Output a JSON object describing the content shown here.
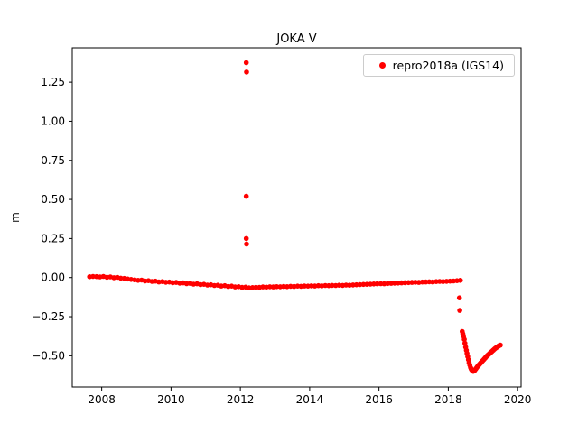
{
  "chart_data": {
    "type": "scatter",
    "title": "JOKA V",
    "xlabel": "",
    "ylabel": "m",
    "legend_label": "repro2018a (IGS14)",
    "legend_position": "upper right",
    "grid": false,
    "xlim": [
      2007.15,
      2020.1
    ],
    "ylim": [
      -0.7,
      1.47
    ],
    "xticks": [
      2008,
      2010,
      2012,
      2014,
      2016,
      2018,
      2020
    ],
    "xtick_labels": [
      "2008",
      "2010",
      "2012",
      "2014",
      "2016",
      "2018",
      "2020"
    ],
    "yticks": [
      -0.5,
      -0.25,
      0.0,
      0.25,
      0.5,
      0.75,
      1.0,
      1.25
    ],
    "ytick_labels": [
      "−0.50",
      "−0.25",
      "0.00",
      "0.25",
      "0.50",
      "0.75",
      "1.00",
      "1.25"
    ],
    "series": [
      {
        "name": "repro2018a (IGS14)",
        "color": "#ff0000",
        "marker_size": 2.8,
        "segments": [
          {
            "x_start": 2007.65,
            "x_step": 0.1,
            "y": [
              0.005,
              0.007,
              0.006,
              0.004,
              0.007,
              0.002,
              0.004,
              -0.001,
              0.001,
              -0.004,
              -0.006,
              -0.009,
              -0.012,
              -0.015,
              -0.018,
              -0.016,
              -0.022,
              -0.02,
              -0.025,
              -0.023,
              -0.028,
              -0.026,
              -0.03,
              -0.029,
              -0.033,
              -0.031,
              -0.036,
              -0.034,
              -0.039,
              -0.037,
              -0.042,
              -0.04,
              -0.045,
              -0.043,
              -0.048,
              -0.046,
              -0.051,
              -0.049,
              -0.054,
              -0.052,
              -0.057,
              -0.055,
              -0.06,
              -0.058,
              -0.063,
              -0.061,
              -0.066,
              -0.064,
              -0.062,
              -0.063,
              -0.06,
              -0.061,
              -0.059,
              -0.06,
              -0.058,
              -0.059,
              -0.057,
              -0.058,
              -0.056,
              -0.057,
              -0.055,
              -0.056,
              -0.054,
              -0.055,
              -0.053,
              -0.054,
              -0.052,
              -0.053,
              -0.051,
              -0.052,
              -0.05,
              -0.051,
              -0.049,
              -0.05,
              -0.048,
              -0.049,
              -0.047,
              -0.046,
              -0.045,
              -0.044,
              -0.043,
              -0.042,
              -0.041,
              -0.04,
              -0.039,
              -0.04,
              -0.038,
              -0.037,
              -0.036,
              -0.035,
              -0.034,
              -0.033,
              -0.032,
              -0.031,
              -0.03,
              -0.031,
              -0.029,
              -0.028,
              -0.027,
              -0.028,
              -0.026,
              -0.025,
              -0.026,
              -0.024,
              -0.023,
              -0.022,
              -0.02,
              -0.018
            ]
          },
          {
            "x_start": 2018.4,
            "x_step": 0.02,
            "y": [
              -0.345,
              -0.36,
              -0.375,
              -0.395,
              -0.42,
              -0.445,
              -0.465,
              -0.485,
              -0.505,
              -0.525,
              -0.545,
              -0.56,
              -0.575,
              -0.585,
              -0.592,
              -0.598,
              -0.6,
              -0.598,
              -0.594,
              -0.588,
              -0.582,
              -0.576,
              -0.57,
              -0.565,
              -0.56,
              -0.555,
              -0.55,
              -0.545,
              -0.54,
              -0.535,
              -0.53,
              -0.525,
              -0.52,
              -0.515,
              -0.51,
              -0.505,
              -0.5,
              -0.496,
              -0.492,
              -0.488,
              -0.484,
              -0.48,
              -0.476,
              -0.472,
              -0.468,
              -0.464,
              -0.46,
              -0.456,
              -0.452,
              -0.449,
              -0.446,
              -0.443,
              -0.44,
              -0.437,
              -0.434,
              -0.432
            ]
          }
        ],
        "points": [
          [
            2012.17,
            1.375
          ],
          [
            2012.18,
            1.315
          ],
          [
            2012.17,
            0.52
          ],
          [
            2012.17,
            0.25
          ],
          [
            2012.18,
            0.215
          ],
          [
            2018.32,
            -0.13
          ],
          [
            2018.33,
            -0.21
          ]
        ]
      }
    ]
  }
}
